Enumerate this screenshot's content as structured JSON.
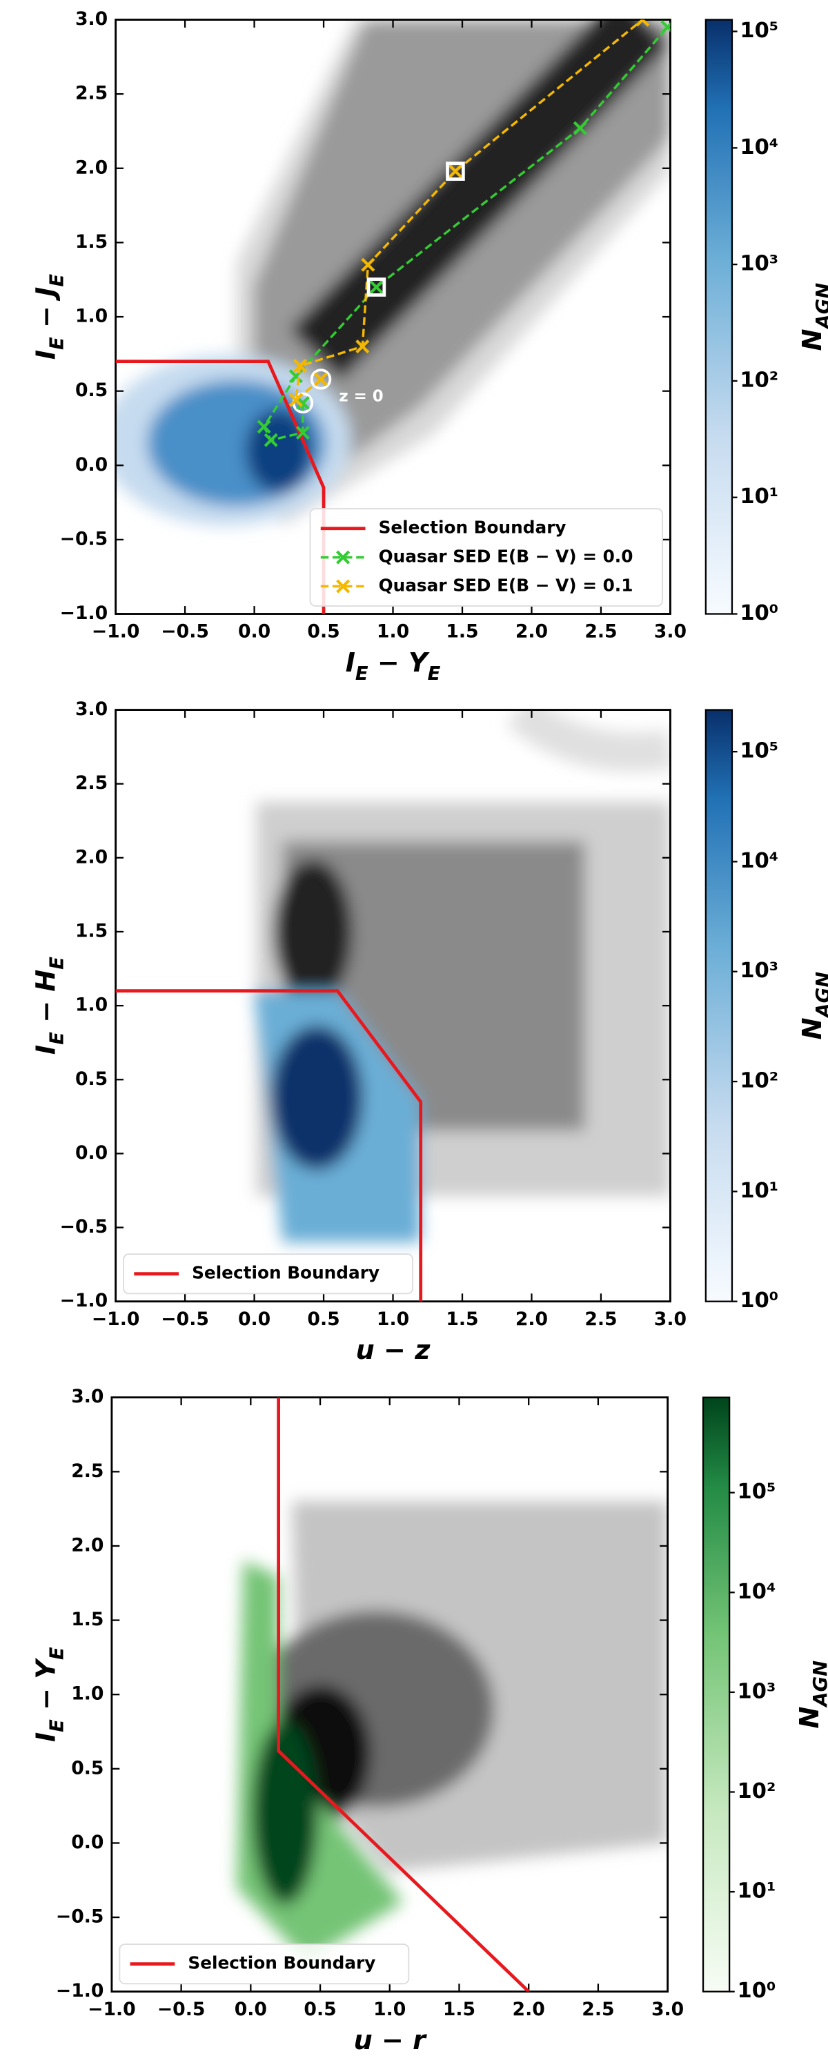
{
  "chart_data": [
    {
      "type": "heatmap",
      "xlabel": "I_E − Y_E",
      "ylabel": "I_E − J_E",
      "xlim": [
        -1,
        3
      ],
      "ylim": [
        -1,
        3
      ],
      "xticks": [
        {
          "value": -1,
          "label": "−1.0"
        },
        {
          "value": -0.5,
          "label": "−0.5"
        },
        {
          "value": 0,
          "label": "0.0"
        },
        {
          "value": 0.5,
          "label": "0.5"
        },
        {
          "value": 1,
          "label": "1.0"
        },
        {
          "value": 1.5,
          "label": "1.5"
        },
        {
          "value": 2,
          "label": "2.0"
        },
        {
          "value": 2.5,
          "label": "2.5"
        },
        {
          "value": 3,
          "label": "3.0"
        }
      ],
      "yticks": [
        {
          "value": -1,
          "label": "−1.0"
        },
        {
          "value": -0.5,
          "label": "−0.5"
        },
        {
          "value": 0,
          "label": "0.0"
        },
        {
          "value": 0.5,
          "label": "0.5"
        },
        {
          "value": 1,
          "label": "1.0"
        },
        {
          "value": 1.5,
          "label": "1.5"
        },
        {
          "value": 2,
          "label": "2.0"
        },
        {
          "value": 2.5,
          "label": "2.5"
        },
        {
          "value": 3,
          "label": "3.0"
        }
      ],
      "colorbar": {
        "label": "N_AGN",
        "colormap": "Blues",
        "log": true,
        "lim": [
          1,
          126000
        ],
        "ticks": [
          {
            "value": 1,
            "label": "10⁰"
          },
          {
            "value": 10,
            "label": "10¹"
          },
          {
            "value": 100,
            "label": "10²"
          },
          {
            "value": 1000,
            "label": "10³"
          },
          {
            "value": 10000,
            "label": "10⁴"
          },
          {
            "value": 100000,
            "label": "10⁵"
          }
        ]
      },
      "legend": "lower right",
      "series": [
        {
          "name": "Selection Boundary",
          "color": "#e8191e",
          "style": "solid",
          "x": [
            -1,
            0.1,
            0.5,
            0.5
          ],
          "y": [
            0.7,
            0.7,
            -0.15,
            -1
          ]
        },
        {
          "name": "Quasar SED E(B − V) = 0.0",
          "color": "#33cc33",
          "style": "dashed",
          "marker": "x",
          "first_marker": "circle",
          "x": [
            0.35,
            0.35,
            0.12,
            0.07,
            0.3,
            0.88,
            2.35,
            2.98
          ],
          "y": [
            0.42,
            0.22,
            0.17,
            0.26,
            0.6,
            1.2,
            2.27,
            2.95
          ]
        },
        {
          "name": "Quasar SED E(B − V) = 0.1",
          "color": "#f5b800",
          "style": "dashed",
          "marker": "x",
          "first_marker": "circle",
          "x": [
            0.48,
            0.3,
            0.33,
            0.78,
            0.82,
            1.45,
            2.8
          ],
          "y": [
            0.58,
            0.44,
            0.67,
            0.8,
            1.35,
            1.98,
            3.0
          ]
        }
      ],
      "square_markers": {
        "x": [
          0.88,
          1.45
        ],
        "y": [
          1.2,
          1.98
        ]
      },
      "annotation": "z = 0"
    },
    {
      "type": "heatmap",
      "xlabel": "u − z",
      "ylabel": "I_E − H_E",
      "xlim": [
        -1,
        3
      ],
      "ylim": [
        -1,
        3
      ],
      "xticks": [
        {
          "value": -1,
          "label": "−1.0"
        },
        {
          "value": -0.5,
          "label": "−0.5"
        },
        {
          "value": 0,
          "label": "0.0"
        },
        {
          "value": 0.5,
          "label": "0.5"
        },
        {
          "value": 1,
          "label": "1.0"
        },
        {
          "value": 1.5,
          "label": "1.5"
        },
        {
          "value": 2,
          "label": "2.0"
        },
        {
          "value": 2.5,
          "label": "2.5"
        },
        {
          "value": 3,
          "label": "3.0"
        }
      ],
      "yticks": [
        {
          "value": -1,
          "label": "−1.0"
        },
        {
          "value": -0.5,
          "label": "−0.5"
        },
        {
          "value": 0,
          "label": "0.0"
        },
        {
          "value": 0.5,
          "label": "0.5"
        },
        {
          "value": 1,
          "label": "1.0"
        },
        {
          "value": 1.5,
          "label": "1.5"
        },
        {
          "value": 2,
          "label": "2.0"
        },
        {
          "value": 2.5,
          "label": "2.5"
        },
        {
          "value": 3,
          "label": "3.0"
        }
      ],
      "colorbar": {
        "label": "N_AGN",
        "colormap": "Blues",
        "log": true,
        "lim": [
          1,
          240000
        ],
        "ticks": [
          {
            "value": 1,
            "label": "10⁰"
          },
          {
            "value": 10,
            "label": "10¹"
          },
          {
            "value": 100,
            "label": "10²"
          },
          {
            "value": 1000,
            "label": "10³"
          },
          {
            "value": 10000,
            "label": "10⁴"
          },
          {
            "value": 100000,
            "label": "10⁵"
          }
        ]
      },
      "legend": "lower left",
      "series": [
        {
          "name": "Selection Boundary",
          "color": "#e8191e",
          "style": "solid",
          "x": [
            -1,
            0.6,
            1.2,
            1.2
          ],
          "y": [
            1.1,
            1.1,
            0.35,
            -1
          ]
        }
      ]
    },
    {
      "type": "heatmap",
      "xlabel": "u − r",
      "ylabel": "I_E − Y_E",
      "xlim": [
        -1,
        3
      ],
      "ylim": [
        -1,
        3
      ],
      "xticks": [
        {
          "value": -1,
          "label": "−1.0"
        },
        {
          "value": -0.5,
          "label": "−0.5"
        },
        {
          "value": 0,
          "label": "0.0"
        },
        {
          "value": 0.5,
          "label": "0.5"
        },
        {
          "value": 1,
          "label": "1.0"
        },
        {
          "value": 1.5,
          "label": "1.5"
        },
        {
          "value": 2,
          "label": "2.0"
        },
        {
          "value": 2.5,
          "label": "2.5"
        },
        {
          "value": 3,
          "label": "3.0"
        }
      ],
      "yticks": [
        {
          "value": -1,
          "label": "−1.0"
        },
        {
          "value": -0.5,
          "label": "−0.5"
        },
        {
          "value": 0,
          "label": "0.0"
        },
        {
          "value": 0.5,
          "label": "0.5"
        },
        {
          "value": 1,
          "label": "1.0"
        },
        {
          "value": 1.5,
          "label": "1.5"
        },
        {
          "value": 2,
          "label": "2.0"
        },
        {
          "value": 2.5,
          "label": "2.5"
        },
        {
          "value": 3,
          "label": "3.0"
        }
      ],
      "colorbar": {
        "label": "N_AGN",
        "colormap": "Greens",
        "log": true,
        "lim": [
          1,
          900000
        ],
        "ticks": [
          {
            "value": 1,
            "label": "10⁰"
          },
          {
            "value": 10,
            "label": "10¹"
          },
          {
            "value": 100,
            "label": "10²"
          },
          {
            "value": 1000,
            "label": "10³"
          },
          {
            "value": 10000,
            "label": "10⁴"
          },
          {
            "value": 100000,
            "label": "10⁵"
          }
        ]
      },
      "legend": "lower left",
      "series": [
        {
          "name": "Selection Boundary",
          "color": "#e8191e",
          "style": "solid",
          "x": [
            0.2,
            0.2,
            2.0
          ],
          "y": [
            3.0,
            0.62,
            -1
          ]
        }
      ]
    }
  ]
}
